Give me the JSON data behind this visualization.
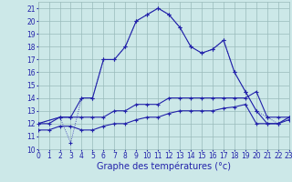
{
  "line_main1_x": [
    0,
    2,
    3,
    4,
    5,
    6,
    7,
    8,
    9,
    10,
    11,
    12,
    13,
    14,
    15,
    16,
    17,
    18,
    19,
    20,
    21,
    22,
    23
  ],
  "line_main1_y": [
    12,
    12.5,
    12.5,
    14,
    14,
    17,
    17,
    18,
    20,
    20.5,
    21,
    20.5,
    19.5,
    18,
    17.5,
    17.8,
    18.5,
    16,
    14.5,
    13,
    12,
    12,
    12.5
  ],
  "line_main2_x": [
    0,
    2,
    3,
    4,
    5,
    6,
    7,
    8,
    9,
    10,
    11,
    12,
    13,
    14,
    15,
    16,
    17,
    18,
    19,
    20,
    21,
    22,
    23
  ],
  "line_main2_y": [
    12,
    12.5,
    10.5,
    14,
    14,
    17,
    17,
    18,
    20,
    20.5,
    21,
    20.5,
    19.5,
    18,
    17.5,
    17.8,
    18.5,
    16,
    14.5,
    13,
    12.5,
    12,
    12.5
  ],
  "line_flat1_x": [
    0,
    1,
    2,
    3,
    4,
    5,
    6,
    7,
    8,
    9,
    10,
    11,
    12,
    13,
    14,
    15,
    16,
    17,
    18,
    19,
    20,
    21,
    22,
    23
  ],
  "line_flat1_y": [
    12,
    12,
    12.5,
    12.5,
    12.5,
    12.5,
    12.5,
    13,
    13,
    13.5,
    13.5,
    13.5,
    14,
    14,
    14,
    14,
    14,
    14,
    14,
    14,
    14.5,
    12.5,
    12.5,
    12.5
  ],
  "line_flat2_x": [
    0,
    1,
    2,
    3,
    4,
    5,
    6,
    7,
    8,
    9,
    10,
    11,
    12,
    13,
    14,
    15,
    16,
    17,
    18,
    19,
    20,
    21,
    22,
    23
  ],
  "line_flat2_y": [
    11.5,
    11.5,
    11.8,
    11.8,
    11.5,
    11.5,
    11.8,
    12,
    12,
    12.3,
    12.5,
    12.5,
    12.8,
    13,
    13,
    13,
    13,
    13.2,
    13.3,
    13.5,
    12,
    12,
    12,
    12.3
  ],
  "bg_color": "#cce8e8",
  "grid_color": "#99bbbb",
  "line_color": "#2222aa",
  "xlim": [
    0,
    23
  ],
  "ylim": [
    10,
    21.5
  ],
  "yticks": [
    10,
    11,
    12,
    13,
    14,
    15,
    16,
    17,
    18,
    19,
    20,
    21
  ],
  "xticks": [
    0,
    1,
    2,
    3,
    4,
    5,
    6,
    7,
    8,
    9,
    10,
    11,
    12,
    13,
    14,
    15,
    16,
    17,
    18,
    19,
    20,
    21,
    22,
    23
  ],
  "xlabel": "Graphe des températures (°c)",
  "axis_fontsize": 7,
  "tick_fontsize": 5.5
}
